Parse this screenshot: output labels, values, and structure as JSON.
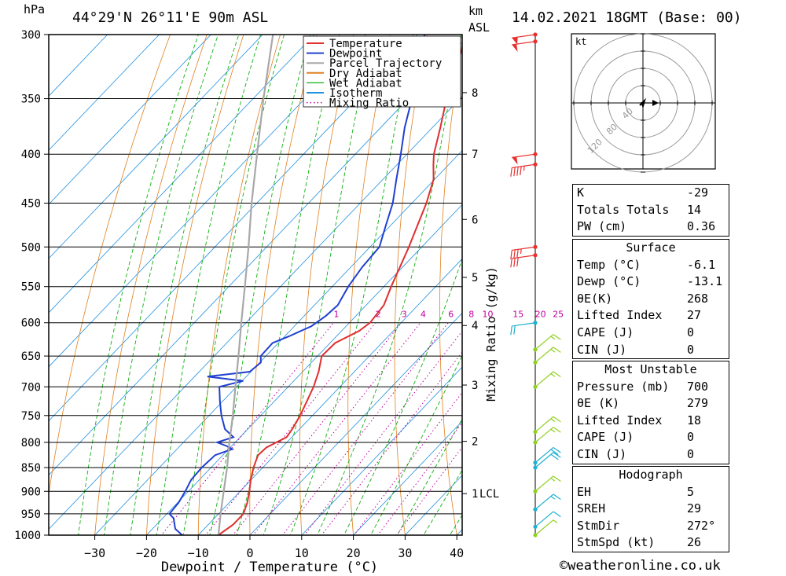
{
  "header": {
    "location": "44°29'N  26°11'E  90m  ASL",
    "datetime": "14.02.2021  18GMT  (Base: 00)",
    "hpa_unit": "hPa",
    "km_unit": "km",
    "asl_unit": "ASL"
  },
  "chart_data": {
    "type": "line",
    "title": "44°29'N  26°11'E  90m  ASL",
    "xlabel": "Dewpoint / Temperature (°C)",
    "ylabel_left": "hPa",
    "ylabel_right": "Mixing Ratio (g/kg)",
    "xlim": [
      -40,
      40
    ],
    "ylim_hpa": [
      1000,
      300
    ],
    "x_ticks": [
      -30,
      -20,
      -10,
      0,
      10,
      20,
      30,
      40
    ],
    "pressure_levels": [
      300,
      350,
      400,
      450,
      500,
      550,
      600,
      650,
      700,
      750,
      800,
      850,
      900,
      950,
      1000
    ],
    "km_ticks": [
      {
        "label": "8",
        "p": 345
      },
      {
        "label": "7",
        "p": 400
      },
      {
        "label": "6",
        "p": 468
      },
      {
        "label": "5",
        "p": 538
      },
      {
        "label": "4",
        "p": 604
      },
      {
        "label": "3",
        "p": 697
      },
      {
        "label": "2",
        "p": 798
      },
      {
        "label": "1",
        "p": 905
      }
    ],
    "lcl_label": "LCL",
    "lcl_p": 905,
    "mixing_ratio_labels": [
      "1",
      "2",
      "3",
      "4",
      "6",
      "8",
      "10",
      "15",
      "20",
      "25"
    ],
    "mixing_ratio_values": [
      1,
      2,
      3,
      4,
      6,
      8,
      10,
      15,
      20,
      25
    ],
    "mixing_ratio_label_p": 595,
    "legend": [
      "Temperature",
      "Dewpoint",
      "Parcel Trajectory",
      "Dry Adiabat",
      "Wet Adiabat",
      "Isotherm",
      "Mixing Ratio"
    ],
    "legend_colors": [
      "#e03030",
      "#2040d0",
      "#a8a8a8",
      "#e08020",
      "#10b010",
      "#2090e0",
      "#c000a0"
    ],
    "series": [
      {
        "name": "Temperature",
        "color": "#e03030",
        "points": [
          [
            1000,
            -6.1
          ],
          [
            975,
            -5.2
          ],
          [
            950,
            -5.2
          ],
          [
            925,
            -6.5
          ],
          [
            900,
            -8.2
          ],
          [
            875,
            -10.1
          ],
          [
            850,
            -11.8
          ],
          [
            825,
            -13.2
          ],
          [
            810,
            -13.0
          ],
          [
            790,
            -11.0
          ],
          [
            775,
            -11.4
          ],
          [
            750,
            -12.4
          ],
          [
            725,
            -13.7
          ],
          [
            700,
            -15.1
          ],
          [
            675,
            -16.9
          ],
          [
            650,
            -19.2
          ],
          [
            630,
            -19.0
          ],
          [
            612,
            -16.6
          ],
          [
            600,
            -16.0
          ],
          [
            575,
            -16.6
          ],
          [
            550,
            -18.6
          ],
          [
            500,
            -22.5
          ],
          [
            475,
            -24.8
          ],
          [
            450,
            -27.2
          ],
          [
            425,
            -30.2
          ],
          [
            410,
            -33.0
          ],
          [
            400,
            -34.8
          ],
          [
            375,
            -38.5
          ],
          [
            350,
            -42.6
          ],
          [
            325,
            -46.6
          ],
          [
            300,
            -50.4
          ]
        ]
      },
      {
        "name": "Dewpoint",
        "color": "#2040d0",
        "points": [
          [
            1000,
            -13.1
          ],
          [
            985,
            -15.6
          ],
          [
            960,
            -17.9
          ],
          [
            950,
            -19.5
          ],
          [
            925,
            -19.8
          ],
          [
            900,
            -20.6
          ],
          [
            875,
            -21.6
          ],
          [
            850,
            -21.8
          ],
          [
            825,
            -21.5
          ],
          [
            813,
            -19.3
          ],
          [
            807,
            -21.0
          ],
          [
            800,
            -23.5
          ],
          [
            790,
            -21.3
          ],
          [
            775,
            -24.4
          ],
          [
            750,
            -27.6
          ],
          [
            725,
            -30.5
          ],
          [
            700,
            -33.3
          ],
          [
            690,
            -29.8
          ],
          [
            683,
            -37.5
          ],
          [
            675,
            -30.2
          ],
          [
            660,
            -29.8
          ],
          [
            650,
            -31.0
          ],
          [
            630,
            -31.1
          ],
          [
            620,
            -29.2
          ],
          [
            605,
            -26.7
          ],
          [
            590,
            -25.8
          ],
          [
            575,
            -25.5
          ],
          [
            550,
            -26.9
          ],
          [
            525,
            -27.8
          ],
          [
            500,
            -28.2
          ],
          [
            475,
            -30.9
          ],
          [
            450,
            -33.7
          ],
          [
            425,
            -37.4
          ],
          [
            400,
            -41.2
          ],
          [
            375,
            -45.4
          ],
          [
            350,
            -49.3
          ],
          [
            325,
            -53.5
          ],
          [
            313,
            -55.8
          ],
          [
            300,
            -58.7
          ]
        ]
      },
      {
        "name": "Parcel Trajectory",
        "color": "#a8a8a8",
        "points": [
          [
            1000,
            -6.1
          ],
          [
            950,
            -9.6
          ],
          [
            905,
            -12.8
          ],
          [
            850,
            -16.9
          ],
          [
            800,
            -21.1
          ],
          [
            750,
            -25.4
          ],
          [
            700,
            -30.2
          ],
          [
            650,
            -35.3
          ],
          [
            600,
            -40.9
          ],
          [
            550,
            -46.9
          ],
          [
            500,
            -53.5
          ],
          [
            450,
            -61.0
          ],
          [
            400,
            -69.0
          ],
          [
            350,
            -78.0
          ],
          [
            300,
            -88.0
          ]
        ]
      }
    ]
  },
  "hodograph": {
    "unit_label": "kt",
    "ring_labels": [
      "40",
      "80",
      "120"
    ]
  },
  "indices": {
    "rows": [
      {
        "k": "K",
        "v": "-29"
      },
      {
        "k": "Totals Totals",
        "v": "14"
      },
      {
        "k": "PW (cm)",
        "v": "0.36"
      }
    ]
  },
  "surface": {
    "title": "Surface",
    "rows": [
      {
        "k": "Temp (°C)",
        "v": "-6.1"
      },
      {
        "k": "Dewp (°C)",
        "v": "-13.1"
      },
      {
        "k": "θE(K)",
        "v": "268"
      },
      {
        "k": "Lifted Index",
        "v": "27"
      },
      {
        "k": "CAPE (J)",
        "v": "0"
      },
      {
        "k": "CIN (J)",
        "v": "0"
      }
    ]
  },
  "most_unstable": {
    "title": "Most Unstable",
    "rows": [
      {
        "k": "Pressure (mb)",
        "v": "700"
      },
      {
        "k": "θE (K)",
        "v": "279"
      },
      {
        "k": "Lifted Index",
        "v": "18"
      },
      {
        "k": "CAPE (J)",
        "v": "0"
      },
      {
        "k": "CIN (J)",
        "v": "0"
      }
    ]
  },
  "hodo_stats": {
    "title": "Hodograph",
    "rows": [
      {
        "k": "EH",
        "v": "5"
      },
      {
        "k": "SREH",
        "v": "29"
      },
      {
        "k": "StmDir",
        "v": "272°"
      },
      {
        "k": "StmSpd (kt)",
        "v": "26"
      }
    ]
  },
  "wind_barbs": {
    "colors": [
      "#e83030",
      "#20b0d0",
      "#90d020",
      "#f0c000"
    ],
    "levels": [
      {
        "p": 300,
        "spd": 55,
        "c": 0
      },
      {
        "p": 305,
        "spd": 50,
        "c": 0
      },
      {
        "p": 400,
        "spd": 50,
        "c": 0
      },
      {
        "p": 410,
        "spd": 45,
        "c": 0
      },
      {
        "p": 500,
        "spd": 35,
        "c": 0
      },
      {
        "p": 510,
        "spd": 30,
        "c": 0
      },
      {
        "p": 600,
        "spd": 20,
        "c": 1
      },
      {
        "p": 640,
        "spd": 15,
        "c": 2
      },
      {
        "p": 660,
        "spd": 15,
        "c": 2
      },
      {
        "p": 700,
        "spd": 15,
        "c": 2
      },
      {
        "p": 780,
        "spd": 15,
        "c": 2
      },
      {
        "p": 800,
        "spd": 15,
        "c": 2
      },
      {
        "p": 840,
        "spd": 20,
        "c": 1
      },
      {
        "p": 850,
        "spd": 20,
        "c": 1
      },
      {
        "p": 900,
        "spd": 15,
        "c": 2
      },
      {
        "p": 940,
        "spd": 15,
        "c": 1
      },
      {
        "p": 980,
        "spd": 10,
        "c": 1
      },
      {
        "p": 1000,
        "spd": 5,
        "c": 2
      }
    ]
  },
  "footer": {
    "credit": "©weatheronline.co.uk"
  }
}
